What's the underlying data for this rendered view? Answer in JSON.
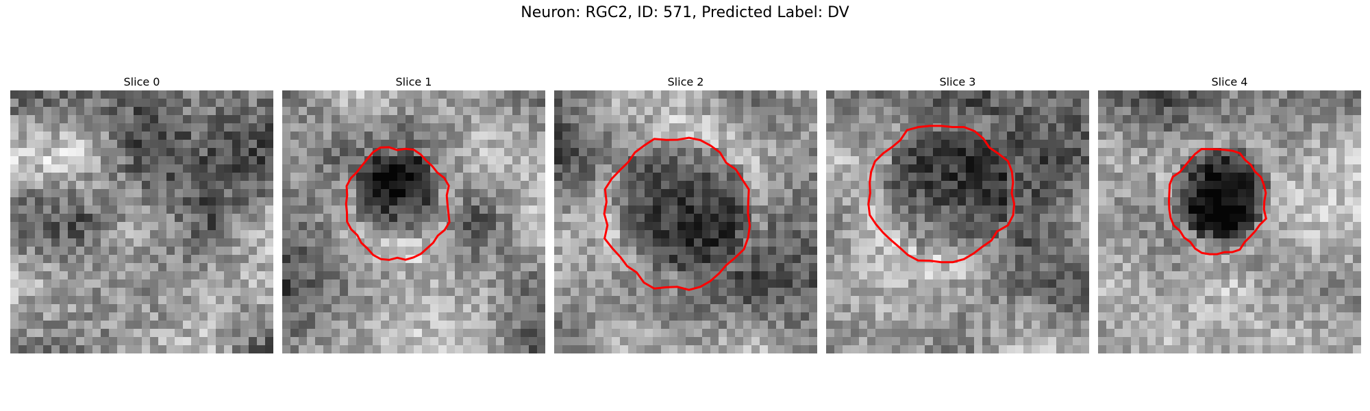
{
  "figure": {
    "title": "Neuron: RGC2, ID: 571, Predicted Label: DV"
  },
  "colors": {
    "contour": "#ff0000",
    "background": "#ffffff"
  },
  "panels": [
    {
      "title": "Slice 0",
      "has_contour": false,
      "contour_color": "#ff0000"
    },
    {
      "title": "Slice 1",
      "has_contour": true,
      "contour_color": "#ff0000"
    },
    {
      "title": "Slice 2",
      "has_contour": true,
      "contour_color": "#ff0000"
    },
    {
      "title": "Slice 3",
      "has_contour": true,
      "contour_color": "#ff0000"
    },
    {
      "title": "Slice 4",
      "has_contour": true,
      "contour_color": "#ff0000"
    }
  ]
}
